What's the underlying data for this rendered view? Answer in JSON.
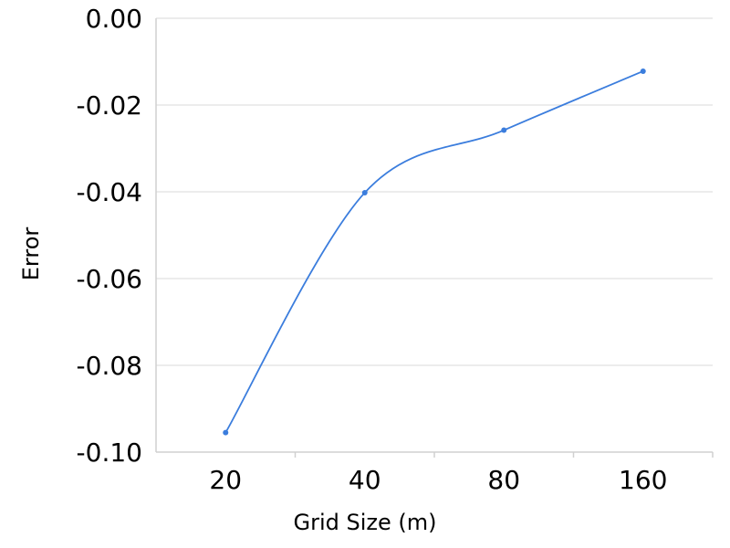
{
  "chart_data": {
    "type": "line",
    "categories": [
      "20",
      "40",
      "80",
      "160"
    ],
    "series": [
      {
        "values": [
          -0.0955,
          -0.0402,
          -0.0258,
          -0.0122
        ]
      }
    ],
    "ylim": [
      -0.1,
      0.0
    ],
    "y_ticks": [
      "0.00",
      "-0.02",
      "-0.04",
      "-0.06",
      "-0.08",
      "-0.10"
    ],
    "y_tick_values": [
      0.0,
      -0.02,
      -0.04,
      -0.06,
      -0.08,
      -0.1
    ],
    "xlabel": "Grid Size (m)",
    "ylabel": "Error",
    "grid": "horizontal",
    "smooth": true,
    "line_color": "#3b7ddd",
    "marker_color": "#3b7ddd"
  }
}
